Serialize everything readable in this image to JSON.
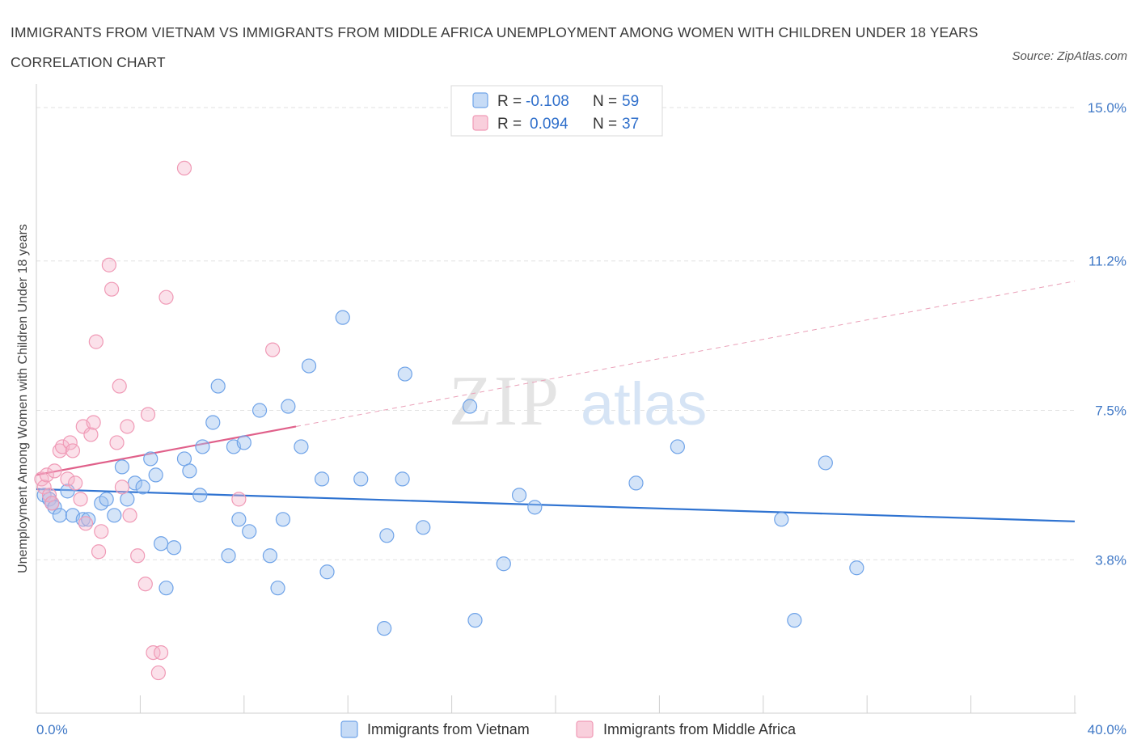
{
  "title": "IMMIGRANTS FROM VIETNAM VS IMMIGRANTS FROM MIDDLE AFRICA UNEMPLOYMENT AMONG WOMEN WITH CHILDREN UNDER 18 YEARS CORRELATION CHART",
  "source": "Source: ZipAtlas.com",
  "watermark": {
    "zip": "ZIP",
    "atlas": "atlas"
  },
  "colors": {
    "vietnam": "#6fa3e8",
    "vietnam_line": "#2f73d1",
    "middle_africa": "#f09ab6",
    "middle_africa_line": "#e0608a",
    "tick": "#3f78c6"
  },
  "chart_data": {
    "type": "scatter",
    "ylabel": "Unemployment Among Women with Children Under 18 years",
    "xlim": [
      0,
      40
    ],
    "ylim": [
      0,
      15
    ],
    "x_tick_labels": [
      "0.0%",
      "40.0%"
    ],
    "y_ticks": [
      3.8,
      7.5,
      11.2,
      15.0
    ],
    "y_tick_labels": [
      "3.8%",
      "7.5%",
      "11.2%",
      "15.0%"
    ],
    "grid": true,
    "legend": {
      "placement": "top-center",
      "rows": [
        {
          "r_label": "R =",
          "r_value": "-0.108",
          "n_label": "N =",
          "n_value": "59"
        },
        {
          "r_label": "R =",
          "r_value": "0.094",
          "n_label": "N =",
          "n_value": "37"
        }
      ]
    },
    "series": [
      {
        "name": "Immigrants from Vietnam",
        "trend": {
          "x": [
            0,
            40
          ],
          "y": [
            5.55,
            4.75
          ]
        },
        "points": [
          [
            0.3,
            5.4
          ],
          [
            0.5,
            5.3
          ],
          [
            0.6,
            5.2
          ],
          [
            0.7,
            5.1
          ],
          [
            0.9,
            4.9
          ],
          [
            1.2,
            5.5
          ],
          [
            1.4,
            4.9
          ],
          [
            1.8,
            4.8
          ],
          [
            2.0,
            4.8
          ],
          [
            2.5,
            5.2
          ],
          [
            2.7,
            5.3
          ],
          [
            3.0,
            4.9
          ],
          [
            3.3,
            6.1
          ],
          [
            3.5,
            5.3
          ],
          [
            3.8,
            5.7
          ],
          [
            4.1,
            5.6
          ],
          [
            4.4,
            6.3
          ],
          [
            4.6,
            5.9
          ],
          [
            4.8,
            4.2
          ],
          [
            5.0,
            3.1
          ],
          [
            5.3,
            4.1
          ],
          [
            5.7,
            6.3
          ],
          [
            5.9,
            6.0
          ],
          [
            6.3,
            5.4
          ],
          [
            6.4,
            6.6
          ],
          [
            6.8,
            7.2
          ],
          [
            7.0,
            8.1
          ],
          [
            7.4,
            3.9
          ],
          [
            7.6,
            6.6
          ],
          [
            7.8,
            4.8
          ],
          [
            8.0,
            6.7
          ],
          [
            8.2,
            4.5
          ],
          [
            8.6,
            7.5
          ],
          [
            9.0,
            3.9
          ],
          [
            9.3,
            3.1
          ],
          [
            9.5,
            4.8
          ],
          [
            9.7,
            7.6
          ],
          [
            10.2,
            6.6
          ],
          [
            10.5,
            8.6
          ],
          [
            11.0,
            5.8
          ],
          [
            11.2,
            3.5
          ],
          [
            11.8,
            9.8
          ],
          [
            12.5,
            5.8
          ],
          [
            13.4,
            2.1
          ],
          [
            13.5,
            4.4
          ],
          [
            14.1,
            5.8
          ],
          [
            14.2,
            8.4
          ],
          [
            14.9,
            4.6
          ],
          [
            16.7,
            7.6
          ],
          [
            16.9,
            2.3
          ],
          [
            18.0,
            3.7
          ],
          [
            18.6,
            5.4
          ],
          [
            19.2,
            5.1
          ],
          [
            23.1,
            5.7
          ],
          [
            24.7,
            6.6
          ],
          [
            28.7,
            4.8
          ],
          [
            29.2,
            2.3
          ],
          [
            30.4,
            6.2
          ],
          [
            31.6,
            3.6
          ]
        ]
      },
      {
        "name": "Immigrants from Middle Africa",
        "trend": {
          "x": [
            0,
            10
          ],
          "y": [
            5.9,
            7.1
          ]
        },
        "trend_ext": {
          "x": [
            10,
            40
          ],
          "y": [
            7.1,
            10.7
          ]
        },
        "points": [
          [
            0.2,
            5.8
          ],
          [
            0.3,
            5.6
          ],
          [
            0.4,
            5.9
          ],
          [
            0.5,
            5.4
          ],
          [
            0.6,
            5.2
          ],
          [
            0.7,
            6.0
          ],
          [
            0.9,
            6.5
          ],
          [
            1.0,
            6.6
          ],
          [
            1.2,
            5.8
          ],
          [
            1.3,
            6.7
          ],
          [
            1.4,
            6.5
          ],
          [
            1.5,
            5.7
          ],
          [
            1.7,
            5.3
          ],
          [
            1.8,
            7.1
          ],
          [
            1.9,
            4.7
          ],
          [
            2.1,
            6.9
          ],
          [
            2.2,
            7.2
          ],
          [
            2.3,
            9.2
          ],
          [
            2.4,
            4.0
          ],
          [
            2.5,
            4.5
          ],
          [
            2.8,
            11.1
          ],
          [
            2.9,
            10.5
          ],
          [
            3.1,
            6.7
          ],
          [
            3.2,
            8.1
          ],
          [
            3.3,
            5.6
          ],
          [
            3.5,
            7.1
          ],
          [
            3.6,
            4.9
          ],
          [
            3.9,
            3.9
          ],
          [
            4.2,
            3.2
          ],
          [
            4.3,
            7.4
          ],
          [
            4.5,
            1.5
          ],
          [
            4.7,
            1.0
          ],
          [
            4.8,
            1.5
          ],
          [
            5.0,
            10.3
          ],
          [
            5.7,
            13.5
          ],
          [
            7.8,
            5.3
          ],
          [
            9.1,
            9.0
          ]
        ]
      }
    ]
  }
}
